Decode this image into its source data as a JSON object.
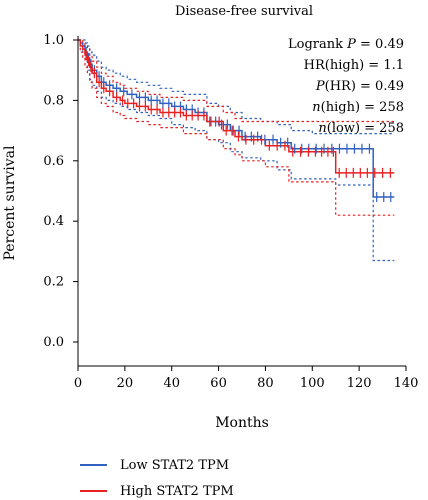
{
  "chart_data": {
    "type": "line",
    "title": "Disease-free survival",
    "xlabel": "Months",
    "ylabel": "Percent survival",
    "xlim": [
      0,
      140
    ],
    "ylim": [
      0,
      1.0
    ],
    "xticks": [
      0,
      20,
      40,
      60,
      80,
      100,
      120,
      140
    ],
    "yticks": [
      0.0,
      0.2,
      0.4,
      0.6,
      0.8,
      1.0
    ],
    "xtick_labels": [
      "0",
      "20",
      "40",
      "60",
      "80",
      "100",
      "120",
      "140"
    ],
    "ytick_labels": [
      "0.0",
      "0.2",
      "0.4",
      "0.6",
      "0.8",
      "1.0"
    ],
    "grid": false,
    "stats_lines": [
      [
        "Logrank ",
        {
          "i": "P"
        },
        " = 0.49"
      ],
      [
        "HR(high) = 1.1"
      ],
      [
        {
          "i": "P"
        },
        "(HR) = 0.49"
      ],
      [
        {
          "i": "n"
        },
        "(high) = 258"
      ],
      [
        {
          "i": "n"
        },
        "(low) = 258"
      ]
    ],
    "legend": {
      "position": "bottom-left",
      "entries": [
        {
          "label": "Low STAT2 TPM",
          "color": "#3060c0"
        },
        {
          "label": "High STAT2 TPM",
          "color": "#e82020"
        }
      ]
    },
    "series": [
      {
        "name": "Low STAT2 TPM",
        "color": "#3060c0",
        "x": [
          0,
          1,
          2,
          3,
          4,
          5,
          6,
          8,
          10,
          12,
          15,
          18,
          21,
          25,
          30,
          35,
          40,
          45,
          50,
          55,
          60,
          65,
          70,
          78,
          85,
          91,
          100,
          110,
          126,
          135
        ],
        "y": [
          1.0,
          0.99,
          0.98,
          0.96,
          0.94,
          0.92,
          0.9,
          0.88,
          0.86,
          0.85,
          0.84,
          0.83,
          0.82,
          0.81,
          0.8,
          0.79,
          0.78,
          0.77,
          0.76,
          0.73,
          0.72,
          0.7,
          0.68,
          0.67,
          0.66,
          0.64,
          0.64,
          0.64,
          0.48,
          0.48
        ],
        "ci_upper": [
          1.0,
          1.0,
          1.0,
          0.99,
          0.98,
          0.96,
          0.95,
          0.93,
          0.91,
          0.9,
          0.89,
          0.88,
          0.87,
          0.86,
          0.85,
          0.84,
          0.83,
          0.82,
          0.82,
          0.79,
          0.78,
          0.76,
          0.74,
          0.73,
          0.72,
          0.7,
          0.69,
          0.69,
          0.69,
          0.69
        ],
        "ci_lower": [
          1.0,
          0.98,
          0.96,
          0.93,
          0.9,
          0.87,
          0.85,
          0.83,
          0.81,
          0.8,
          0.79,
          0.78,
          0.77,
          0.76,
          0.75,
          0.74,
          0.72,
          0.71,
          0.7,
          0.67,
          0.66,
          0.63,
          0.61,
          0.6,
          0.57,
          0.54,
          0.54,
          0.52,
          0.27,
          0.27
        ]
      },
      {
        "name": "High STAT2 TPM",
        "color": "#e82020",
        "x": [
          0,
          1,
          2,
          3,
          4,
          5,
          6,
          8,
          10,
          12,
          15,
          18,
          20,
          25,
          30,
          35,
          40,
          45,
          50,
          55,
          62,
          67,
          70,
          80,
          90,
          100,
          108,
          110,
          125,
          135
        ],
        "y": [
          1.0,
          0.98,
          0.97,
          0.95,
          0.93,
          0.91,
          0.89,
          0.86,
          0.84,
          0.83,
          0.81,
          0.8,
          0.79,
          0.78,
          0.77,
          0.76,
          0.76,
          0.75,
          0.75,
          0.73,
          0.7,
          0.68,
          0.67,
          0.65,
          0.63,
          0.63,
          0.63,
          0.56,
          0.56,
          0.56
        ],
        "ci_upper": [
          1.0,
          1.0,
          0.99,
          0.98,
          0.97,
          0.95,
          0.93,
          0.91,
          0.89,
          0.88,
          0.86,
          0.85,
          0.84,
          0.83,
          0.82,
          0.81,
          0.81,
          0.8,
          0.8,
          0.78,
          0.76,
          0.74,
          0.73,
          0.73,
          0.73,
          0.73,
          0.73,
          0.73,
          0.73,
          0.73
        ],
        "ci_lower": [
          1.0,
          0.96,
          0.94,
          0.91,
          0.89,
          0.86,
          0.84,
          0.81,
          0.79,
          0.78,
          0.76,
          0.75,
          0.74,
          0.73,
          0.72,
          0.71,
          0.71,
          0.69,
          0.69,
          0.67,
          0.64,
          0.62,
          0.6,
          0.58,
          0.53,
          0.53,
          0.53,
          0.42,
          0.42,
          0.42
        ]
      }
    ]
  }
}
